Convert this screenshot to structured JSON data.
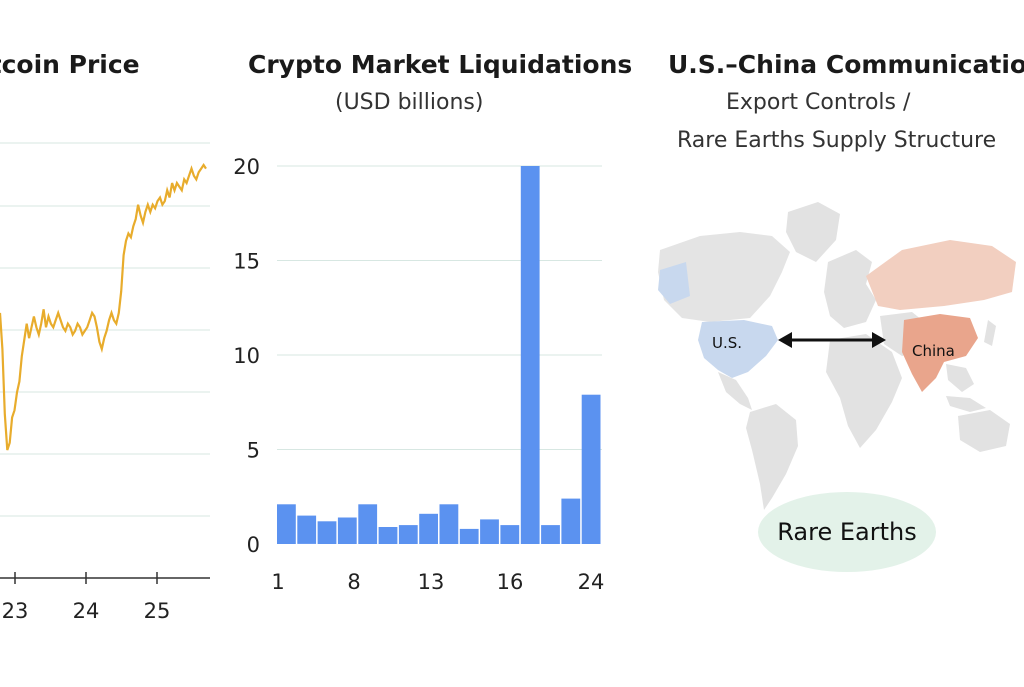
{
  "chart_data": [
    {
      "type": "line",
      "title": "Bitcoin Price",
      "x_ticks": [
        "23",
        "24",
        "25"
      ],
      "series": [
        {
          "color": "#e8ac2c",
          "values": [
            320,
            270,
            180,
            130,
            140,
            175,
            185,
            210,
            225,
            260,
            282,
            305,
            285,
            300,
            315,
            300,
            290,
            305,
            325,
            300,
            315,
            305,
            300,
            310,
            320,
            310,
            300,
            295,
            305,
            300,
            290,
            295,
            305,
            300,
            290,
            295,
            300,
            310,
            320,
            315,
            300,
            280,
            270,
            285,
            295,
            310,
            320,
            310,
            305,
            320,
            350,
            400,
            420,
            430,
            425,
            440,
            450,
            470,
            455,
            445,
            460,
            470,
            460,
            470,
            465,
            475,
            480,
            470,
            475,
            490,
            480,
            500,
            490,
            500,
            495,
            490,
            505,
            500,
            510,
            520,
            510,
            505,
            515,
            520,
            525,
            520
          ]
        }
      ],
      "grid": true
    },
    {
      "type": "bar",
      "title": "Crypto Market Liquidations",
      "subtitle": "(USD billions)",
      "x_ticks": [
        "1",
        "8",
        "13",
        "16",
        "24"
      ],
      "y_ticks": [
        0,
        5,
        10,
        15,
        20
      ],
      "ylim": [
        0,
        20
      ],
      "color": "#5b92f0",
      "values": [
        2.1,
        1.5,
        1.2,
        1.4,
        2.1,
        0.9,
        1.0,
        1.6,
        2.1,
        0.8,
        1.3,
        1.0,
        20,
        1.0,
        2.4,
        7.9
      ],
      "grid": true
    }
  ],
  "map_panel": {
    "title": "U.S.–China Communication",
    "subtitle_line1": "Export Controls /",
    "subtitle_line2": "Rare Earths Supply Structure",
    "label_us": "U.S.",
    "label_china": "China",
    "badge": "Rare Earths",
    "colors": {
      "us": "#c8d8ee",
      "china": "#e9a58c",
      "land": "#e2e2e2",
      "badge_bg": "#e3f2e9"
    }
  }
}
